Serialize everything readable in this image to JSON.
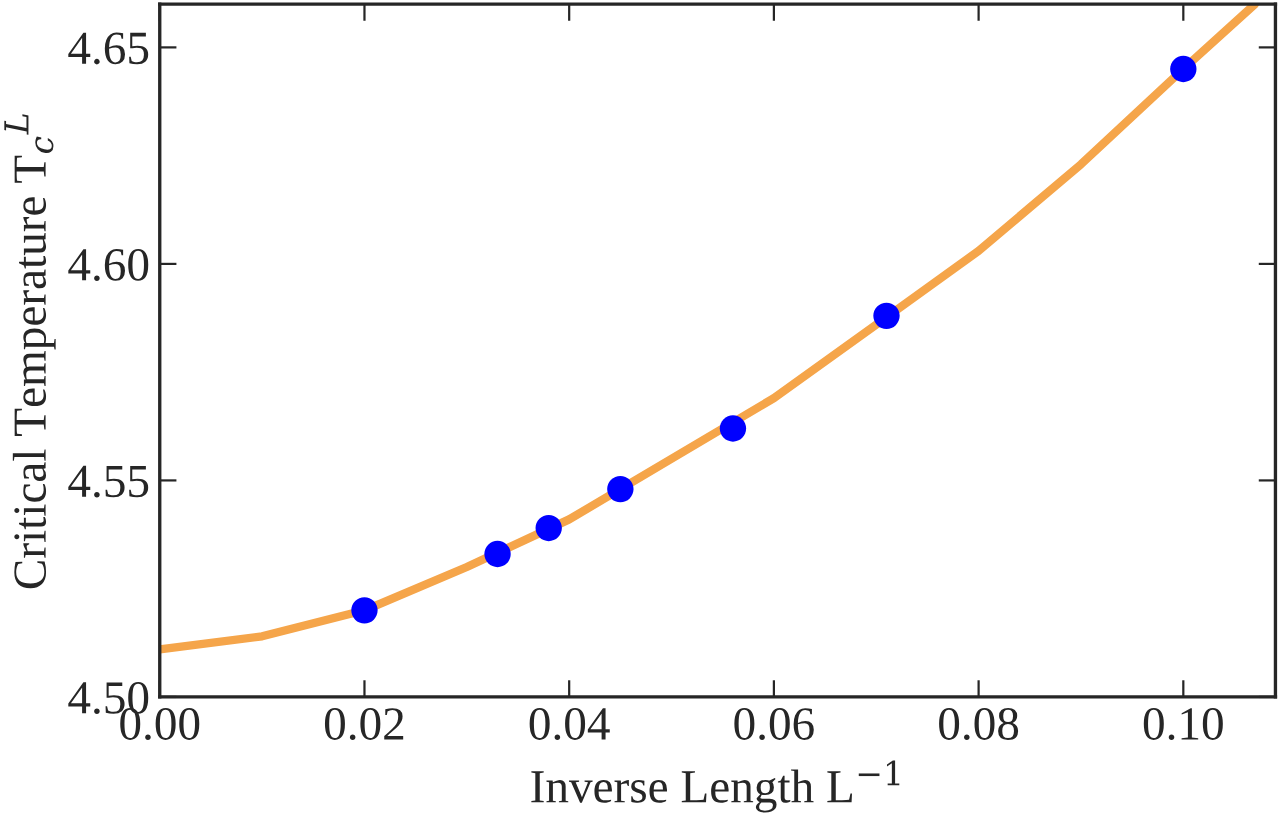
{
  "chart_data": {
    "type": "scatter",
    "xlabel": "Inverse Length L$^{−1}$",
    "ylabel": "Critical Temperature T$_{c}$$^{L}$",
    "series": [
      {
        "type": "line",
        "color": "#f5a54a",
        "x": [
          0,
          0.01,
          0.02,
          0.03,
          0.04,
          0.05,
          0.06,
          0.07,
          0.08,
          0.09,
          0.1,
          0.107
        ],
        "values": [
          4.511,
          4.514,
          4.52,
          4.53,
          4.541,
          4.555,
          4.569,
          4.586,
          4.603,
          4.623,
          4.645,
          4.66
        ]
      },
      {
        "color": "#0000ff",
        "marker": "circle",
        "x": [
          0.02,
          0.033,
          0.038,
          0.045,
          0.056,
          0.071,
          0.1
        ],
        "values": [
          4.52,
          4.533,
          4.539,
          4.548,
          4.562,
          4.588,
          4.645
        ]
      }
    ],
    "xlim": [
      0,
      0.109
    ],
    "ylim": [
      4.5,
      4.66
    ],
    "xticks": [
      {
        "value": 0,
        "label": "0.00"
      },
      0.02,
      0.04,
      0.06,
      0.08,
      {
        "value": 0.1,
        "label": "0.10"
      }
    ],
    "yticks": [
      {
        "value": 4.5,
        "label": "4.50"
      },
      4.55,
      {
        "value": 4.6,
        "label": "4.60"
      },
      4.65
    ],
    "grid": false,
    "legend": false
  }
}
